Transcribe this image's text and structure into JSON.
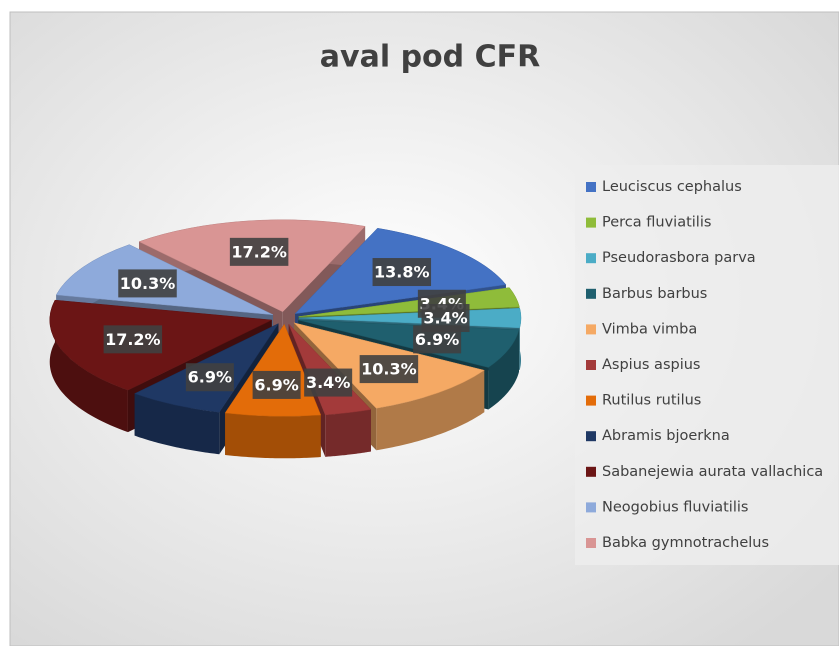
{
  "chart_data": {
    "type": "pie",
    "title": "aval pod CFR",
    "categories": [
      "Leuciscus cephalus",
      "Perca fluviatilis",
      "Pseudorasbora parva",
      "Barbus barbus",
      "Vimba vimba",
      "Aspius aspius",
      "Rutilus rutilus",
      "Abramis bjoerkna",
      "Sabanejewia aurata vallachica",
      "Neogobius fluviatilis",
      "Babka gymnotrachelus"
    ],
    "values": [
      13.8,
      3.4,
      3.4,
      6.9,
      10.3,
      3.4,
      6.9,
      6.9,
      17.2,
      10.3,
      17.2
    ],
    "value_labels": [
      "13.8%",
      "3.4%",
      "3.4%",
      "6.9%",
      "10.3%",
      "3.4%",
      "6.9%",
      "6.9%",
      "17.2%",
      "10.3%",
      "17.2%"
    ],
    "colors": [
      "#4472c4",
      "#8fbc3a",
      "#4bacc6",
      "#1f5f6e",
      "#f5a964",
      "#a33a3a",
      "#e36c09",
      "#1f3864",
      "#6b1515",
      "#8eaadb",
      "#d99594"
    ],
    "legend": "right"
  }
}
